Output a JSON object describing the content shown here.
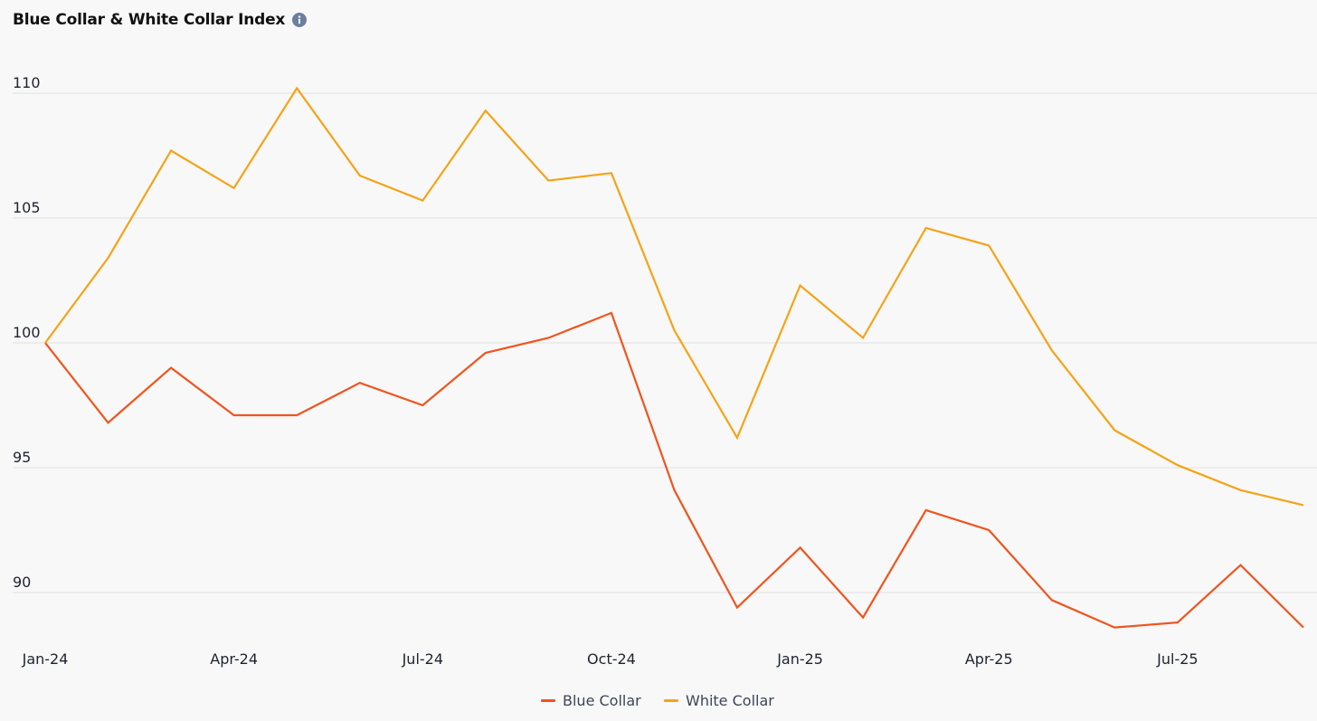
{
  "header": {
    "title": "Blue Collar & White Collar Index",
    "info_icon": "info-icon"
  },
  "chart_data": {
    "type": "line",
    "title": "Blue Collar & White Collar Index",
    "x": [
      "Jan-24",
      "Feb-24",
      "Mar-24",
      "Apr-24",
      "May-24",
      "Jun-24",
      "Jul-24",
      "Aug-24",
      "Sep-24",
      "Oct-24",
      "Nov-24",
      "Dec-24",
      "Jan-25",
      "Feb-25",
      "Mar-25",
      "Apr-25",
      "May-25",
      "Jun-25",
      "Jul-25",
      "Aug-25",
      "Sep-25"
    ],
    "x_tick_labels": [
      "Jan-24",
      "Apr-24",
      "Jul-24",
      "Oct-24",
      "Jan-25",
      "Apr-25",
      "Jul-25"
    ],
    "y_ticks": [
      90,
      95,
      100,
      105,
      110
    ],
    "ylim": [
      88.5,
      111.5
    ],
    "grid": true,
    "legend": "bottom-center",
    "series": [
      {
        "name": "Blue Collar",
        "color": "#f0541e",
        "values": [
          100.0,
          96.8,
          99.0,
          97.1,
          97.1,
          98.4,
          97.5,
          99.6,
          100.2,
          101.2,
          94.1,
          89.4,
          91.8,
          89.0,
          93.3,
          92.5,
          89.7,
          88.6,
          88.8,
          91.1,
          88.6
        ]
      },
      {
        "name": "White Collar",
        "color": "#f5a315",
        "values": [
          100.0,
          103.4,
          107.7,
          106.2,
          110.2,
          106.7,
          105.7,
          109.3,
          106.5,
          106.8,
          100.5,
          96.2,
          102.3,
          100.2,
          104.6,
          103.9,
          99.7,
          96.5,
          95.1,
          94.1,
          93.5
        ]
      }
    ]
  }
}
